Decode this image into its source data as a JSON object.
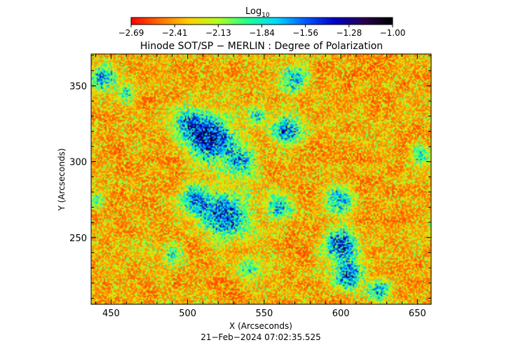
{
  "chart_data": {
    "type": "heatmap",
    "title": "Hinode SOT/SP − MERLIN : Degree of Polarization",
    "xlabel": "X (Arcseconds)",
    "ylabel": "Y (Arcseconds)",
    "timestamp": "21−Feb−2024 07:02:35.525",
    "xlim": [
      437,
      659
    ],
    "ylim": [
      206,
      371
    ],
    "x_ticks": [
      450,
      500,
      550,
      600,
      650
    ],
    "y_ticks": [
      250,
      300,
      350
    ],
    "x_tick_labels": [
      "450",
      "500",
      "550",
      "600",
      "650"
    ],
    "y_tick_labels": [
      "250",
      "300",
      "350"
    ],
    "colorbar": {
      "label_base": "Log",
      "label_sub": "10",
      "range": [
        -2.69,
        -1.0
      ],
      "tick_labels": [
        "−2.69",
        "−2.41",
        "−2.13",
        "−1.84",
        "−1.56",
        "−1.28",
        "−1.00"
      ],
      "colors": [
        "#ff0000",
        "#ff7000",
        "#ffd000",
        "#b0ff20",
        "#20ff90",
        "#00d8ff",
        "#0058ff",
        "#0000c8",
        "#280050",
        "#000000"
      ]
    },
    "strong_polarization_regions": [
      {
        "x": 515,
        "y": 315,
        "spread": 14,
        "strength": 0.9
      },
      {
        "x": 500,
        "y": 325,
        "spread": 10,
        "strength": 0.6
      },
      {
        "x": 535,
        "y": 300,
        "spread": 10,
        "strength": 0.6
      },
      {
        "x": 525,
        "y": 265,
        "spread": 15,
        "strength": 0.75
      },
      {
        "x": 505,
        "y": 275,
        "spread": 10,
        "strength": 0.6
      },
      {
        "x": 560,
        "y": 270,
        "spread": 9,
        "strength": 0.55
      },
      {
        "x": 565,
        "y": 320,
        "spread": 9,
        "strength": 0.75
      },
      {
        "x": 570,
        "y": 355,
        "spread": 9,
        "strength": 0.6
      },
      {
        "x": 600,
        "y": 245,
        "spread": 10,
        "strength": 0.8
      },
      {
        "x": 605,
        "y": 225,
        "spread": 9,
        "strength": 0.75
      },
      {
        "x": 625,
        "y": 215,
        "spread": 7,
        "strength": 0.6
      },
      {
        "x": 600,
        "y": 275,
        "spread": 9,
        "strength": 0.55
      },
      {
        "x": 445,
        "y": 355,
        "spread": 8,
        "strength": 0.55
      },
      {
        "x": 460,
        "y": 345,
        "spread": 6,
        "strength": 0.45
      },
      {
        "x": 545,
        "y": 330,
        "spread": 6,
        "strength": 0.45
      },
      {
        "x": 490,
        "y": 240,
        "spread": 7,
        "strength": 0.4
      },
      {
        "x": 540,
        "y": 230,
        "spread": 7,
        "strength": 0.4
      },
      {
        "x": 652,
        "y": 305,
        "spread": 6,
        "strength": 0.45
      },
      {
        "x": 440,
        "y": 275,
        "spread": 5,
        "strength": 0.4
      }
    ]
  }
}
